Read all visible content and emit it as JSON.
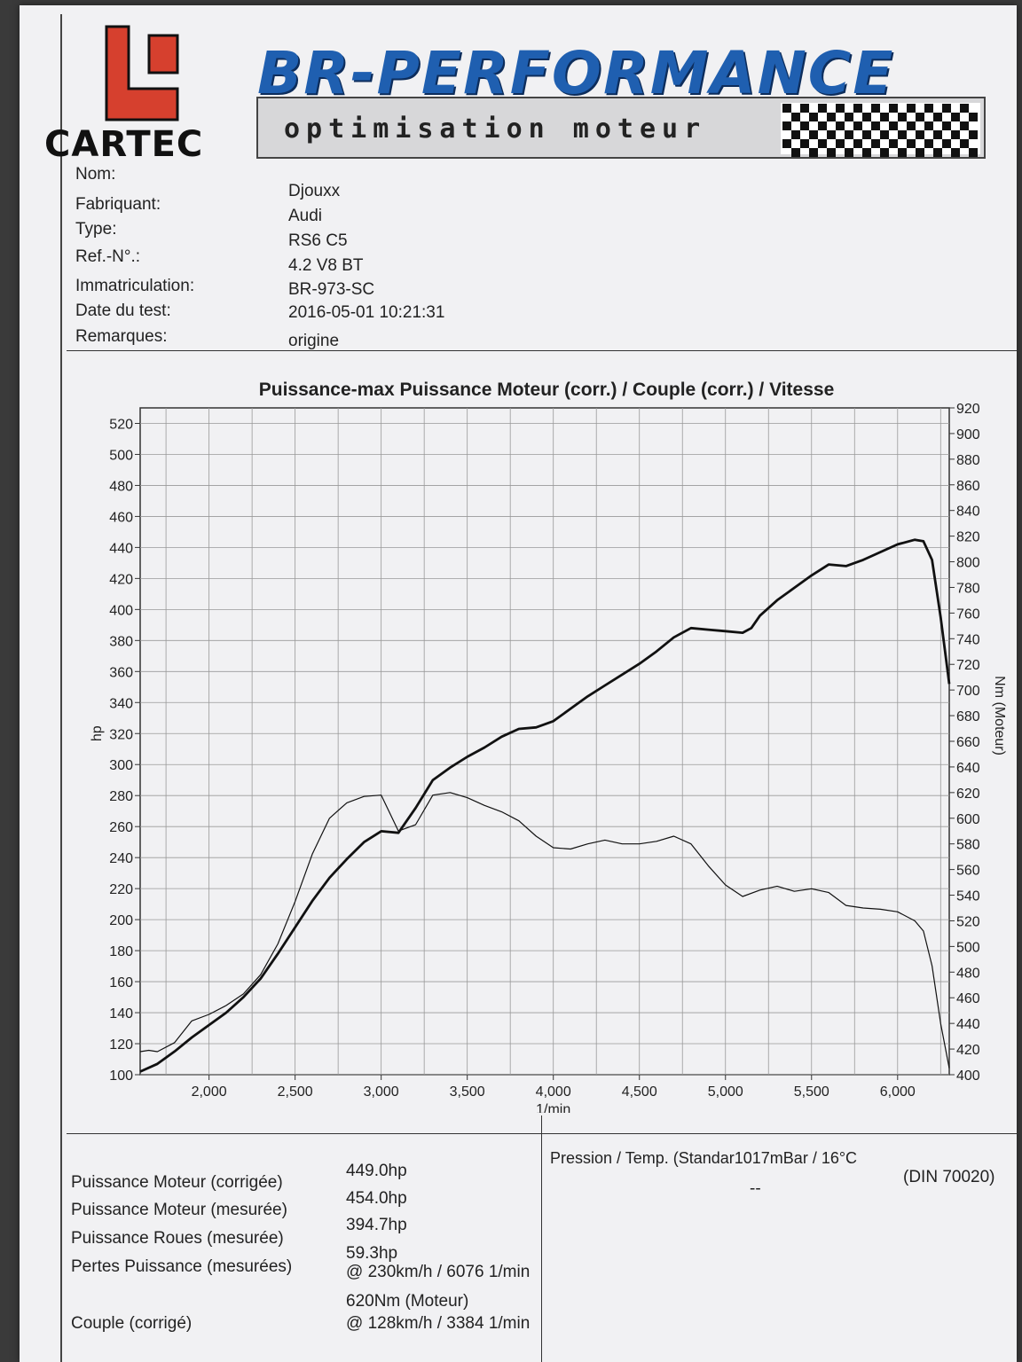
{
  "header": {
    "logo_text": "CARTEC",
    "brand_title": "BR-PERFORMANCE",
    "brand_tagline": "optimisation moteur"
  },
  "info": [
    {
      "label": "Nom:",
      "value": "Djouxx"
    },
    {
      "label": "Fabriquant:",
      "value": "Audi"
    },
    {
      "label": "Type:",
      "value": "RS6 C5"
    },
    {
      "label": "Ref.-N°.:",
      "value": "4.2 V8 BT"
    },
    {
      "label": "Immatriculation:",
      "value": "BR-973-SC"
    },
    {
      "label": "Date du test:",
      "value": "2016-05-01 10:21:31"
    },
    {
      "label": "Remarques:",
      "value": "origine"
    }
  ],
  "results": [
    {
      "label": "Puissance Moteur (corrigée)",
      "value": "449.0hp"
    },
    {
      "label": "Puissance Moteur (mesurée)",
      "value": "454.0hp"
    },
    {
      "label": "Puissance Roues (mesurée)",
      "value": "394.7hp"
    },
    {
      "label": "Pertes Puissance (mesurées)",
      "value": "59.3hp"
    },
    {
      "label": "",
      "value": "@ 230km/h / 6076 1/min"
    },
    {
      "label": "",
      "value": "620Nm (Moteur)"
    },
    {
      "label": "Couple (corrigé)",
      "value": "@ 128km/h / 3384 1/min"
    }
  ],
  "conditions": {
    "pressure_text": "Pression / Temp. (Standar​1017mBar / 16°C",
    "standard": "(DIN 70020)",
    "dash": "--"
  },
  "chart_data": {
    "type": "line",
    "title": "Puissance-max Puissance Moteur (corr.) / Couple (corr.) / Vitesse",
    "xlabel": "1/min",
    "ylabel": "hp",
    "y2label": "Nm (Moteur)",
    "xlim": [
      1600,
      6300
    ],
    "ylim": [
      100,
      530
    ],
    "y2lim": [
      400,
      920
    ],
    "xticks": [
      2000,
      2500,
      3000,
      3500,
      4000,
      4500,
      5000,
      5500,
      6000
    ],
    "xtick_labels": [
      "2,000",
      "2,500",
      "3,000",
      "3,500",
      "4,000",
      "4,500",
      "5,000",
      "5,500",
      "6,000"
    ],
    "yticks": [
      100,
      120,
      140,
      160,
      180,
      200,
      220,
      240,
      260,
      280,
      300,
      320,
      340,
      360,
      380,
      400,
      420,
      440,
      460,
      480,
      500,
      520
    ],
    "y2ticks": [
      400,
      420,
      440,
      460,
      480,
      500,
      520,
      540,
      560,
      580,
      600,
      620,
      640,
      660,
      680,
      700,
      720,
      740,
      760,
      780,
      800,
      820,
      840,
      860,
      880,
      900,
      920
    ],
    "grid": true,
    "series": [
      {
        "name": "",
        "axis": "left",
        "style": "thick",
        "x": [
          1600,
          1700,
          1800,
          1900,
          2000,
          2100,
          2200,
          2300,
          2400,
          2500,
          2600,
          2700,
          2800,
          2900,
          3000,
          3100,
          3200,
          3300,
          3400,
          3500,
          3600,
          3700,
          3800,
          3900,
          4000,
          4100,
          4200,
          4300,
          4400,
          4500,
          4600,
          4700,
          4800,
          4900,
          5000,
          5100,
          5150,
          5200,
          5300,
          5400,
          5500,
          5600,
          5700,
          5800,
          5900,
          6000,
          6100,
          6150,
          6200,
          6250,
          6300
        ],
        "values": [
          102,
          107,
          115,
          124,
          132,
          140,
          150,
          162,
          178,
          195,
          212,
          227,
          239,
          250,
          257,
          256,
          272,
          290,
          298,
          305,
          311,
          318,
          323,
          324,
          328,
          336,
          344,
          351,
          358,
          365,
          373,
          382,
          388,
          387,
          386,
          385,
          388,
          396,
          406,
          414,
          422,
          429,
          428,
          432,
          437,
          442,
          445,
          444,
          432,
          395,
          352
        ]
      },
      {
        "name": "",
        "axis": "right",
        "style": "thin",
        "x": [
          1600,
          1650,
          1700,
          1800,
          1900,
          2000,
          2100,
          2200,
          2300,
          2400,
          2500,
          2600,
          2700,
          2800,
          2900,
          3000,
          3100,
          3200,
          3300,
          3400,
          3500,
          3600,
          3700,
          3800,
          3900,
          4000,
          4100,
          4200,
          4300,
          4400,
          4500,
          4600,
          4700,
          4800,
          4900,
          5000,
          5100,
          5200,
          5300,
          5400,
          5500,
          5600,
          5700,
          5800,
          5900,
          6000,
          6100,
          6150,
          6200,
          6250,
          6300
        ],
        "values": [
          418,
          419,
          418,
          425,
          442,
          447,
          454,
          463,
          478,
          502,
          535,
          572,
          600,
          612,
          617,
          618,
          590,
          595,
          618,
          620,
          616,
          610,
          605,
          598,
          586,
          577,
          576,
          580,
          583,
          580,
          580,
          582,
          586,
          580,
          563,
          548,
          539,
          544,
          547,
          543,
          545,
          542,
          532,
          530,
          529,
          527,
          520,
          512,
          485,
          440,
          405
        ]
      }
    ]
  }
}
